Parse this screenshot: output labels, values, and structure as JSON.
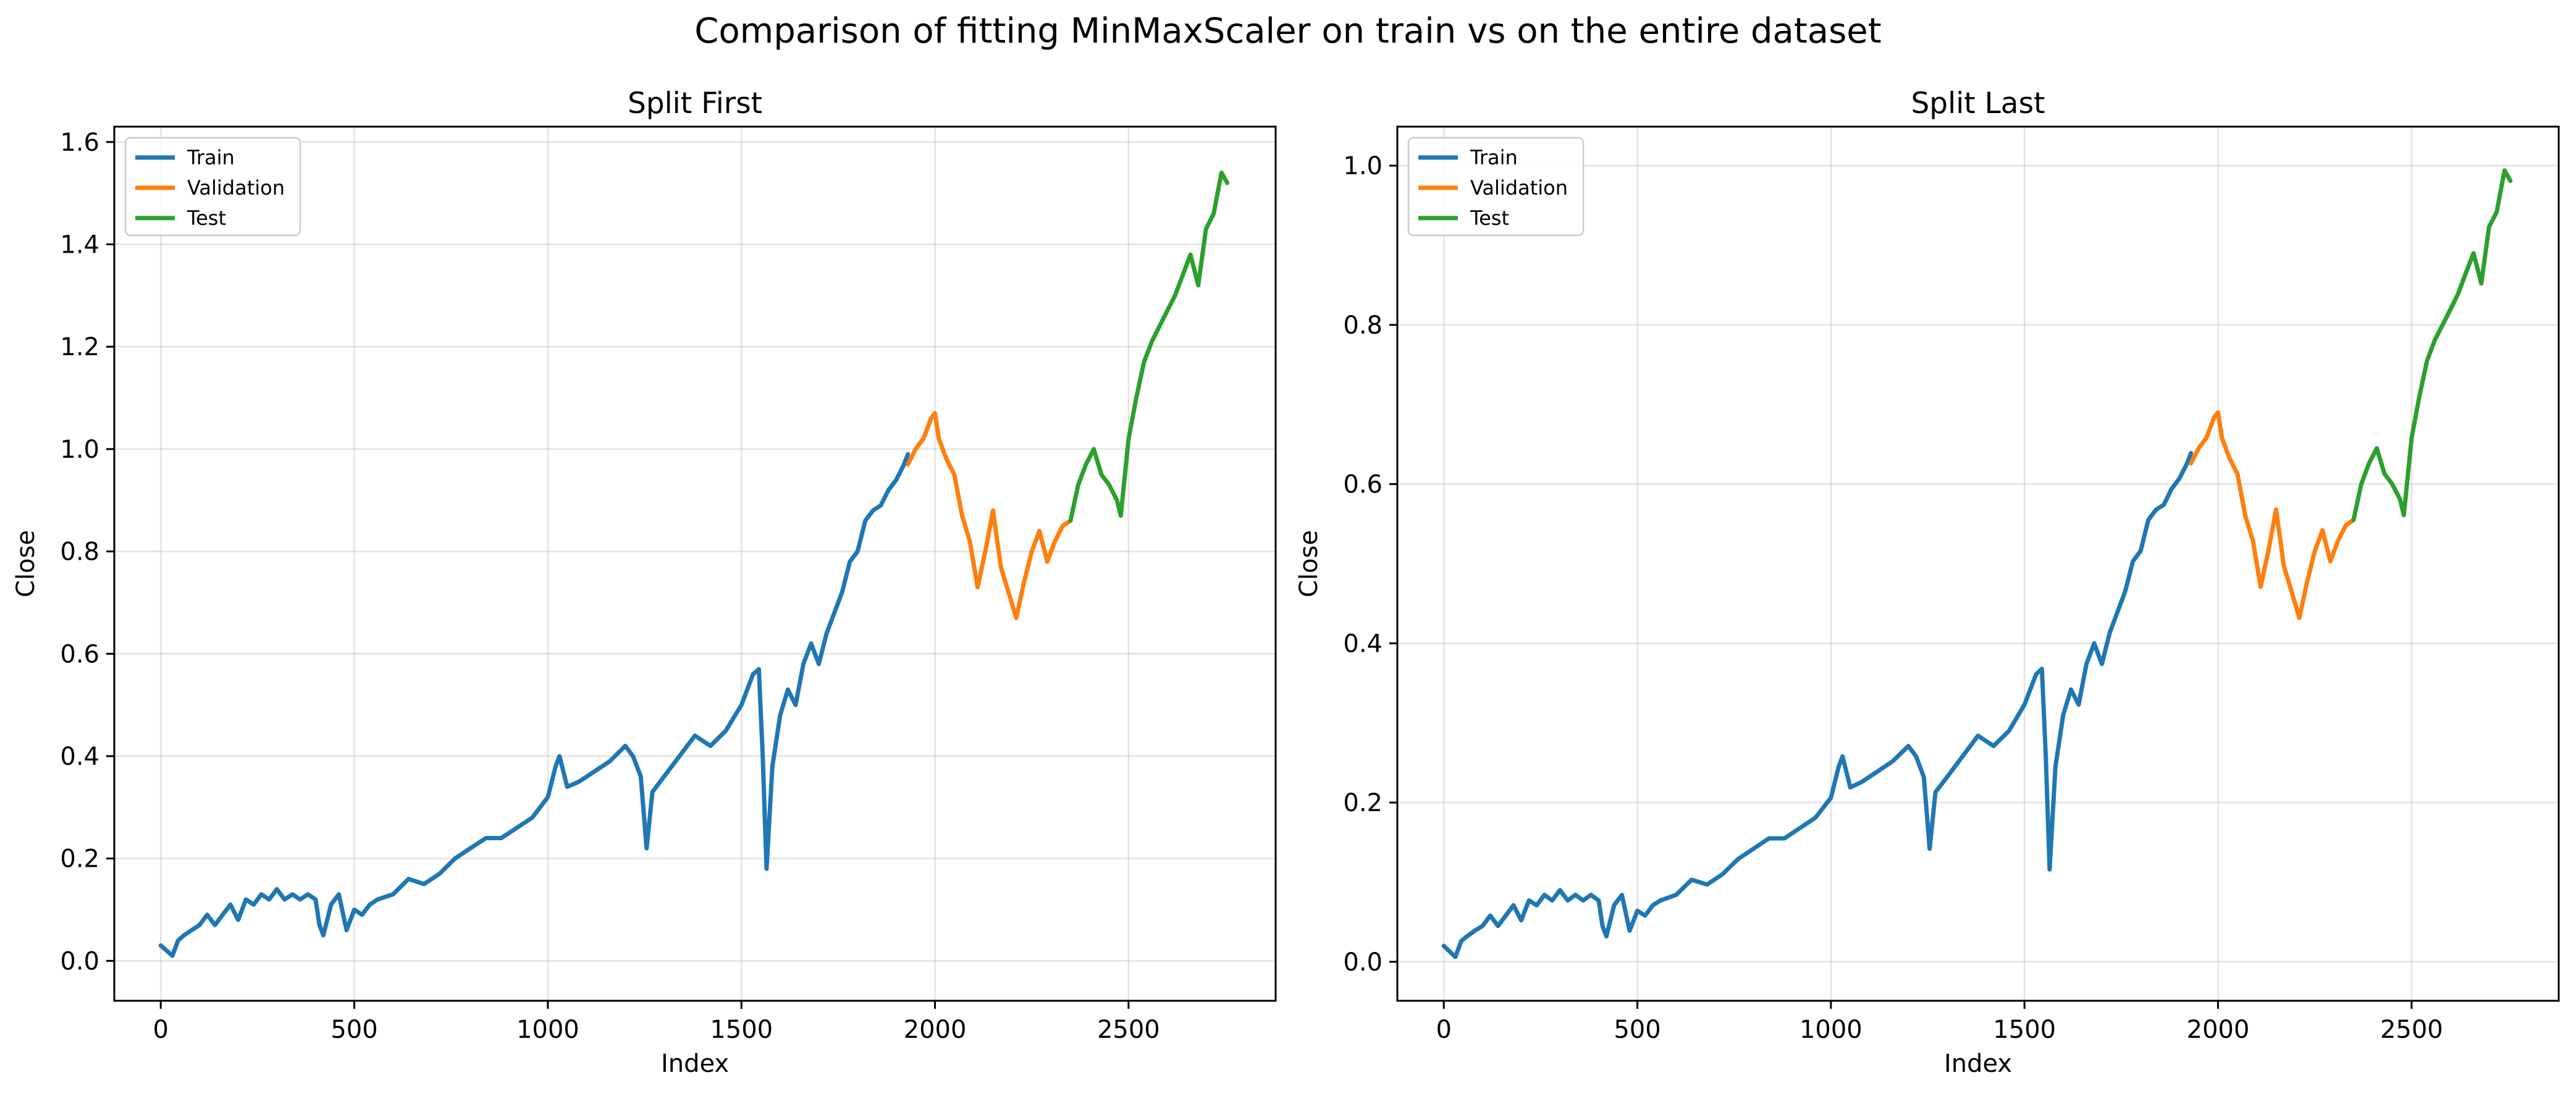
{
  "suptitle": "Comparison of fitting MinMaxScaler on train vs on the entire dataset",
  "chart_data": [
    {
      "type": "line",
      "title": "Split First",
      "xlabel": "Index",
      "ylabel": "Close",
      "xlim": [
        -120,
        2880
      ],
      "ylim": [
        -0.078,
        1.63
      ],
      "xticks": [
        0,
        500,
        1000,
        1500,
        2000,
        2500
      ],
      "yticks": [
        0.0,
        0.2,
        0.4,
        0.6,
        0.8,
        1.0,
        1.2,
        1.4,
        1.6
      ],
      "ytick_labels": [
        "0.0",
        "0.2",
        "0.4",
        "0.6",
        "0.8",
        "1.0",
        "1.2",
        "1.4",
        "1.6"
      ],
      "grid": true,
      "legend_position": "top-left",
      "series": [
        {
          "name": "Train",
          "color": "#1f77b4",
          "x": [
            0,
            15,
            30,
            45,
            60,
            80,
            100,
            120,
            140,
            160,
            180,
            200,
            220,
            240,
            260,
            280,
            300,
            320,
            340,
            360,
            380,
            400,
            410,
            420,
            440,
            460,
            480,
            500,
            520,
            540,
            560,
            600,
            640,
            680,
            720,
            760,
            800,
            840,
            880,
            920,
            960,
            1000,
            1020,
            1030,
            1050,
            1080,
            1120,
            1160,
            1200,
            1220,
            1240,
            1255,
            1270,
            1300,
            1340,
            1380,
            1420,
            1460,
            1500,
            1530,
            1545,
            1555,
            1565,
            1580,
            1600,
            1620,
            1640,
            1660,
            1680,
            1700,
            1720,
            1740,
            1760,
            1780,
            1800,
            1820,
            1840,
            1860,
            1880,
            1900,
            1920,
            1930
          ],
          "y": [
            0.03,
            0.02,
            0.01,
            0.04,
            0.05,
            0.06,
            0.07,
            0.09,
            0.07,
            0.09,
            0.11,
            0.08,
            0.12,
            0.11,
            0.13,
            0.12,
            0.14,
            0.12,
            0.13,
            0.12,
            0.13,
            0.12,
            0.07,
            0.05,
            0.11,
            0.13,
            0.06,
            0.1,
            0.09,
            0.11,
            0.12,
            0.13,
            0.16,
            0.15,
            0.17,
            0.2,
            0.22,
            0.24,
            0.24,
            0.26,
            0.28,
            0.32,
            0.38,
            0.4,
            0.34,
            0.35,
            0.37,
            0.39,
            0.42,
            0.4,
            0.36,
            0.22,
            0.33,
            0.36,
            0.4,
            0.44,
            0.42,
            0.45,
            0.5,
            0.56,
            0.57,
            0.4,
            0.18,
            0.38,
            0.48,
            0.53,
            0.5,
            0.58,
            0.62,
            0.58,
            0.64,
            0.68,
            0.72,
            0.78,
            0.8,
            0.86,
            0.88,
            0.89,
            0.92,
            0.94,
            0.97,
            0.99
          ]
        },
        {
          "name": "Validation",
          "color": "#ff7f0e",
          "x": [
            1930,
            1950,
            1970,
            1990,
            2000,
            2010,
            2030,
            2050,
            2070,
            2090,
            2110,
            2130,
            2150,
            2170,
            2190,
            2210,
            2230,
            2250,
            2270,
            2290,
            2310,
            2330,
            2350
          ],
          "y": [
            0.97,
            1.0,
            1.02,
            1.06,
            1.07,
            1.02,
            0.98,
            0.95,
            0.87,
            0.82,
            0.73,
            0.8,
            0.88,
            0.77,
            0.72,
            0.67,
            0.74,
            0.8,
            0.84,
            0.78,
            0.82,
            0.85,
            0.86
          ]
        },
        {
          "name": "Test",
          "color": "#2ca02c",
          "x": [
            2350,
            2370,
            2390,
            2410,
            2430,
            2450,
            2470,
            2480,
            2500,
            2520,
            2540,
            2560,
            2580,
            2600,
            2620,
            2640,
            2660,
            2680,
            2700,
            2720,
            2740,
            2755
          ],
          "y": [
            0.86,
            0.93,
            0.97,
            1.0,
            0.95,
            0.93,
            0.9,
            0.87,
            1.02,
            1.1,
            1.17,
            1.21,
            1.24,
            1.27,
            1.3,
            1.34,
            1.38,
            1.32,
            1.43,
            1.46,
            1.54,
            1.52
          ]
        }
      ]
    },
    {
      "type": "line",
      "title": "Split Last",
      "xlabel": "Index",
      "ylabel": "Close",
      "xlim": [
        -120,
        2880
      ],
      "ylim": [
        -0.049,
        1.049
      ],
      "xticks": [
        0,
        500,
        1000,
        1500,
        2000,
        2500
      ],
      "yticks": [
        0.0,
        0.2,
        0.4,
        0.6,
        0.8,
        1.0
      ],
      "ytick_labels": [
        "0.0",
        "0.2",
        "0.4",
        "0.6",
        "0.8",
        "1.0"
      ],
      "grid": true,
      "legend_position": "top-left",
      "series": [
        {
          "name": "Train",
          "color": "#1f77b4",
          "x": [
            0,
            15,
            30,
            45,
            60,
            80,
            100,
            120,
            140,
            160,
            180,
            200,
            220,
            240,
            260,
            280,
            300,
            320,
            340,
            360,
            380,
            400,
            410,
            420,
            440,
            460,
            480,
            500,
            520,
            540,
            560,
            600,
            640,
            680,
            720,
            760,
            800,
            840,
            880,
            920,
            960,
            1000,
            1020,
            1030,
            1050,
            1080,
            1120,
            1160,
            1200,
            1220,
            1240,
            1255,
            1270,
            1300,
            1340,
            1380,
            1420,
            1460,
            1500,
            1530,
            1545,
            1555,
            1565,
            1580,
            1600,
            1620,
            1640,
            1660,
            1680,
            1700,
            1720,
            1740,
            1760,
            1780,
            1800,
            1820,
            1840,
            1860,
            1880,
            1900,
            1920,
            1930
          ],
          "y": [
            0.02,
            0.013,
            0.006,
            0.026,
            0.032,
            0.039,
            0.045,
            0.058,
            0.045,
            0.058,
            0.071,
            0.052,
            0.077,
            0.071,
            0.084,
            0.077,
            0.09,
            0.077,
            0.084,
            0.077,
            0.084,
            0.077,
            0.045,
            0.032,
            0.071,
            0.084,
            0.039,
            0.064,
            0.058,
            0.071,
            0.077,
            0.084,
            0.103,
            0.097,
            0.11,
            0.129,
            0.142,
            0.155,
            0.155,
            0.168,
            0.181,
            0.206,
            0.245,
            0.258,
            0.219,
            0.226,
            0.239,
            0.252,
            0.271,
            0.258,
            0.232,
            0.142,
            0.213,
            0.232,
            0.258,
            0.284,
            0.271,
            0.29,
            0.323,
            0.361,
            0.368,
            0.258,
            0.116,
            0.245,
            0.31,
            0.342,
            0.323,
            0.374,
            0.4,
            0.374,
            0.413,
            0.439,
            0.465,
            0.503,
            0.516,
            0.555,
            0.568,
            0.574,
            0.594,
            0.607,
            0.626,
            0.639
          ]
        },
        {
          "name": "Validation",
          "color": "#ff7f0e",
          "x": [
            1930,
            1950,
            1970,
            1990,
            2000,
            2010,
            2030,
            2050,
            2070,
            2090,
            2110,
            2130,
            2150,
            2170,
            2190,
            2210,
            2230,
            2250,
            2270,
            2290,
            2310,
            2330,
            2350
          ],
          "y": [
            0.626,
            0.645,
            0.658,
            0.684,
            0.69,
            0.658,
            0.632,
            0.613,
            0.561,
            0.529,
            0.471,
            0.516,
            0.568,
            0.497,
            0.465,
            0.432,
            0.477,
            0.516,
            0.542,
            0.503,
            0.529,
            0.548,
            0.555
          ]
        },
        {
          "name": "Test",
          "color": "#2ca02c",
          "x": [
            2350,
            2370,
            2390,
            2410,
            2430,
            2450,
            2470,
            2480,
            2500,
            2520,
            2540,
            2560,
            2580,
            2600,
            2620,
            2640,
            2660,
            2680,
            2700,
            2720,
            2740,
            2755
          ],
          "y": [
            0.555,
            0.6,
            0.626,
            0.645,
            0.613,
            0.6,
            0.581,
            0.561,
            0.658,
            0.71,
            0.755,
            0.781,
            0.8,
            0.819,
            0.839,
            0.865,
            0.89,
            0.852,
            0.923,
            0.942,
            0.994,
            0.981
          ]
        }
      ]
    }
  ]
}
